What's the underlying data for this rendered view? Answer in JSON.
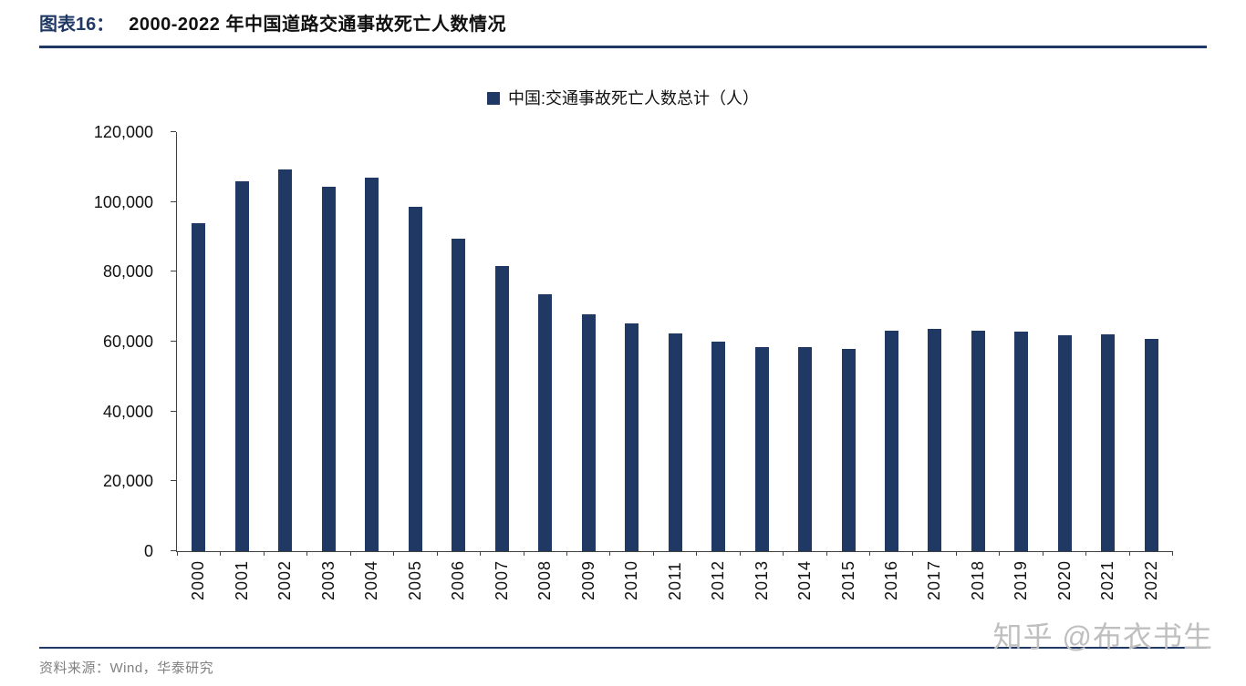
{
  "header": {
    "figure_label": "图表16：",
    "title": "2000-2022 年中国道路交通事故死亡人数情况"
  },
  "chart_data": {
    "type": "bar",
    "title": "2000-2022 年中国道路交通事故死亡人数情况",
    "legend": "中国:交通事故死亡人数总计（人）",
    "legend_position": "top-center",
    "xlabel": "",
    "ylabel": "",
    "grid": false,
    "ylim": [
      0,
      120000
    ],
    "ytick_step": 20000,
    "bar_color": "#1F3864",
    "categories": [
      "2000",
      "2001",
      "2002",
      "2003",
      "2004",
      "2005",
      "2006",
      "2007",
      "2008",
      "2009",
      "2010",
      "2011",
      "2012",
      "2013",
      "2014",
      "2015",
      "2016",
      "2017",
      "2018",
      "2019",
      "2020",
      "2021",
      "2022"
    ],
    "values": [
      93853,
      105930,
      109381,
      104372,
      107077,
      98738,
      89455,
      81649,
      73484,
      67759,
      65225,
      62387,
      59997,
      58539,
      58523,
      58022,
      63093,
      63772,
      63194,
      62763,
      61703,
      62218,
      60676
    ]
  },
  "footer": {
    "source": "资料来源：Wind，华泰研究"
  },
  "watermark": {
    "text": "知乎 @布衣书生"
  },
  "colors": {
    "accent": "#1F3864",
    "bar": "#1F3864",
    "axis": "#404040",
    "source_text": "#808080",
    "watermark": "#BFBFBF"
  }
}
